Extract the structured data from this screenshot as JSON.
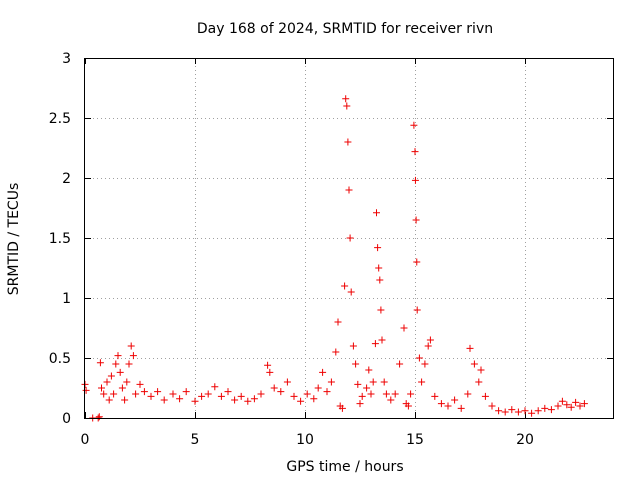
{
  "chart_data": {
    "type": "scatter",
    "title": "Day 168 of 2024, SRMTID for receiver rivn",
    "xlabel": "GPS time / hours",
    "ylabel": "SRMTID / TECUs",
    "xlim": [
      0,
      24
    ],
    "ylim": [
      0,
      3
    ],
    "xticks": [
      0,
      5,
      10,
      15,
      20
    ],
    "yticks": [
      0,
      0.5,
      1,
      1.5,
      2,
      2.5,
      3
    ],
    "xtick_labels": [
      "0",
      "5",
      "10",
      "15",
      "20"
    ],
    "ytick_labels": [
      "0",
      "0.5",
      "1",
      "1.5",
      "2",
      "2.5",
      "3"
    ],
    "grid": true,
    "marker": "plus",
    "color": "#ee0000",
    "series": [
      {
        "name": "SRMTID",
        "points": [
          [
            0.0,
            0.28
          ],
          [
            0.05,
            0.23
          ],
          [
            0.35,
            0.0
          ],
          [
            0.6,
            0.0
          ],
          [
            0.65,
            0.01
          ],
          [
            0.7,
            0.46
          ],
          [
            0.75,
            0.25
          ],
          [
            0.85,
            0.2
          ],
          [
            1.0,
            0.3
          ],
          [
            1.1,
            0.15
          ],
          [
            1.2,
            0.35
          ],
          [
            1.3,
            0.2
          ],
          [
            1.4,
            0.45
          ],
          [
            1.5,
            0.52
          ],
          [
            1.6,
            0.38
          ],
          [
            1.7,
            0.25
          ],
          [
            1.8,
            0.15
          ],
          [
            1.9,
            0.3
          ],
          [
            2.0,
            0.45
          ],
          [
            2.1,
            0.6
          ],
          [
            2.2,
            0.52
          ],
          [
            2.3,
            0.2
          ],
          [
            2.5,
            0.28
          ],
          [
            2.7,
            0.22
          ],
          [
            3.0,
            0.18
          ],
          [
            3.3,
            0.22
          ],
          [
            3.6,
            0.15
          ],
          [
            4.0,
            0.2
          ],
          [
            4.3,
            0.16
          ],
          [
            4.6,
            0.22
          ],
          [
            5.0,
            0.14
          ],
          [
            5.3,
            0.18
          ],
          [
            5.6,
            0.2
          ],
          [
            5.9,
            0.26
          ],
          [
            6.2,
            0.18
          ],
          [
            6.5,
            0.22
          ],
          [
            6.8,
            0.15
          ],
          [
            7.1,
            0.18
          ],
          [
            7.4,
            0.14
          ],
          [
            7.7,
            0.16
          ],
          [
            8.0,
            0.2
          ],
          [
            8.3,
            0.44
          ],
          [
            8.4,
            0.38
          ],
          [
            8.6,
            0.25
          ],
          [
            8.9,
            0.22
          ],
          [
            9.2,
            0.3
          ],
          [
            9.5,
            0.18
          ],
          [
            9.8,
            0.14
          ],
          [
            10.1,
            0.2
          ],
          [
            10.4,
            0.16
          ],
          [
            10.6,
            0.25
          ],
          [
            10.8,
            0.38
          ],
          [
            11.0,
            0.22
          ],
          [
            11.2,
            0.3
          ],
          [
            11.4,
            0.55
          ],
          [
            11.5,
            0.8
          ],
          [
            11.6,
            0.1
          ],
          [
            11.7,
            0.08
          ],
          [
            11.8,
            1.1
          ],
          [
            11.85,
            2.66
          ],
          [
            11.9,
            2.6
          ],
          [
            11.95,
            2.3
          ],
          [
            12.0,
            1.9
          ],
          [
            12.05,
            1.5
          ],
          [
            12.1,
            1.05
          ],
          [
            12.2,
            0.6
          ],
          [
            12.3,
            0.45
          ],
          [
            12.4,
            0.28
          ],
          [
            12.5,
            0.12
          ],
          [
            12.6,
            0.18
          ],
          [
            12.8,
            0.25
          ],
          [
            12.9,
            0.4
          ],
          [
            13.0,
            0.2
          ],
          [
            13.1,
            0.3
          ],
          [
            13.2,
            0.62
          ],
          [
            13.25,
            1.71
          ],
          [
            13.3,
            1.42
          ],
          [
            13.35,
            1.25
          ],
          [
            13.4,
            1.15
          ],
          [
            13.45,
            0.9
          ],
          [
            13.5,
            0.65
          ],
          [
            13.6,
            0.3
          ],
          [
            13.7,
            0.2
          ],
          [
            13.9,
            0.15
          ],
          [
            14.1,
            0.2
          ],
          [
            14.3,
            0.45
          ],
          [
            14.5,
            0.75
          ],
          [
            14.6,
            0.12
          ],
          [
            14.7,
            0.1
          ],
          [
            14.8,
            0.2
          ],
          [
            14.95,
            2.44
          ],
          [
            15.0,
            2.22
          ],
          [
            15.02,
            1.98
          ],
          [
            15.05,
            1.65
          ],
          [
            15.08,
            1.3
          ],
          [
            15.1,
            0.9
          ],
          [
            15.2,
            0.5
          ],
          [
            15.3,
            0.3
          ],
          [
            15.45,
            0.45
          ],
          [
            15.6,
            0.6
          ],
          [
            15.7,
            0.65
          ],
          [
            15.9,
            0.18
          ],
          [
            16.2,
            0.12
          ],
          [
            16.5,
            0.1
          ],
          [
            16.8,
            0.15
          ],
          [
            17.1,
            0.08
          ],
          [
            17.4,
            0.2
          ],
          [
            17.5,
            0.58
          ],
          [
            17.7,
            0.45
          ],
          [
            17.9,
            0.3
          ],
          [
            18.0,
            0.4
          ],
          [
            18.2,
            0.18
          ],
          [
            18.5,
            0.1
          ],
          [
            18.8,
            0.06
          ],
          [
            19.1,
            0.05
          ],
          [
            19.4,
            0.07
          ],
          [
            19.7,
            0.05
          ],
          [
            20.0,
            0.06
          ],
          [
            20.3,
            0.04
          ],
          [
            20.6,
            0.06
          ],
          [
            20.9,
            0.08
          ],
          [
            21.2,
            0.07
          ],
          [
            21.5,
            0.1
          ],
          [
            21.7,
            0.14
          ],
          [
            21.9,
            0.11
          ],
          [
            22.1,
            0.09
          ],
          [
            22.3,
            0.13
          ],
          [
            22.5,
            0.1
          ],
          [
            22.7,
            0.12
          ]
        ]
      }
    ]
  }
}
